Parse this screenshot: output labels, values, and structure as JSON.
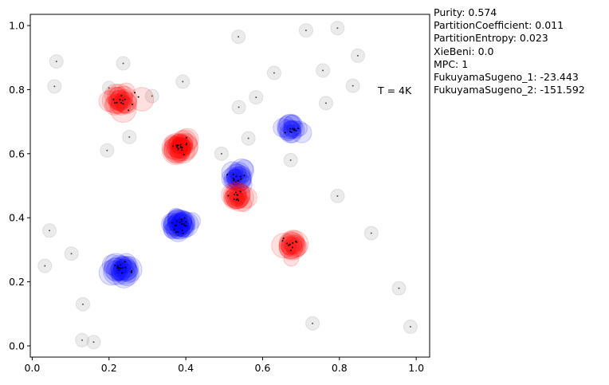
{
  "chart_data": {
    "type": "scatter",
    "title": "",
    "xlabel": "",
    "ylabel": "",
    "xlim": [
      -0.005,
      1.035
    ],
    "ylim": [
      -0.035,
      1.035
    ],
    "grid": false,
    "xticks": [
      "0.0",
      "0.2",
      "0.4",
      "0.6",
      "0.8",
      "1.0"
    ],
    "yticks": [
      "0.0",
      "0.2",
      "0.4",
      "0.6",
      "0.8",
      "1.0"
    ],
    "annotation": "T = 4K",
    "colors": {
      "red_cluster": "#ff0000",
      "blue_cluster": "#0000ff",
      "noise": "#bdbdbd"
    },
    "clusters": [
      {
        "color": "red",
        "x": 0.235,
        "y": 0.765,
        "n": 22,
        "spread": 0.013
      },
      {
        "color": "red",
        "x": 0.385,
        "y": 0.62,
        "n": 28,
        "spread": 0.011
      },
      {
        "color": "blue",
        "x": 0.675,
        "y": 0.675,
        "n": 16,
        "spread": 0.009
      },
      {
        "color": "blue",
        "x": 0.535,
        "y": 0.53,
        "n": 18,
        "spread": 0.011
      },
      {
        "color": "red",
        "x": 0.535,
        "y": 0.465,
        "n": 18,
        "spread": 0.009
      },
      {
        "color": "blue",
        "x": 0.385,
        "y": 0.38,
        "n": 30,
        "spread": 0.011
      },
      {
        "color": "red",
        "x": 0.675,
        "y": 0.315,
        "n": 16,
        "spread": 0.01
      },
      {
        "color": "blue",
        "x": 0.235,
        "y": 0.24,
        "n": 22,
        "spread": 0.011
      }
    ],
    "noise_points": [
      [
        0.537,
        0.965
      ],
      [
        0.713,
        0.985
      ],
      [
        0.795,
        0.992
      ],
      [
        0.063,
        0.888
      ],
      [
        0.237,
        0.882
      ],
      [
        0.848,
        0.906
      ],
      [
        0.757,
        0.86
      ],
      [
        0.63,
        0.852
      ],
      [
        0.058,
        0.81
      ],
      [
        0.2,
        0.805
      ],
      [
        0.392,
        0.825
      ],
      [
        0.835,
        0.812
      ],
      [
        0.312,
        0.78
      ],
      [
        0.583,
        0.776
      ],
      [
        0.538,
        0.745
      ],
      [
        0.765,
        0.758
      ],
      [
        0.253,
        0.652
      ],
      [
        0.563,
        0.648
      ],
      [
        0.195,
        0.61
      ],
      [
        0.493,
        0.6
      ],
      [
        0.673,
        0.58
      ],
      [
        0.795,
        0.468
      ],
      [
        0.045,
        0.36
      ],
      [
        0.883,
        0.352
      ],
      [
        0.102,
        0.288
      ],
      [
        0.033,
        0.25
      ],
      [
        0.955,
        0.18
      ],
      [
        0.132,
        0.13
      ],
      [
        0.73,
        0.07
      ],
      [
        0.985,
        0.06
      ],
      [
        0.13,
        0.018
      ],
      [
        0.16,
        0.012
      ]
    ]
  },
  "metrics": [
    "Purity: 0.574",
    "PartitionCoefficient: 0.011",
    "PartitionEntropy: 0.023",
    "XieBeni: 0.0",
    "MPC: 1",
    "FukuyamaSugeno_1: -23.443",
    "FukuyamaSugeno_2: -151.592"
  ]
}
